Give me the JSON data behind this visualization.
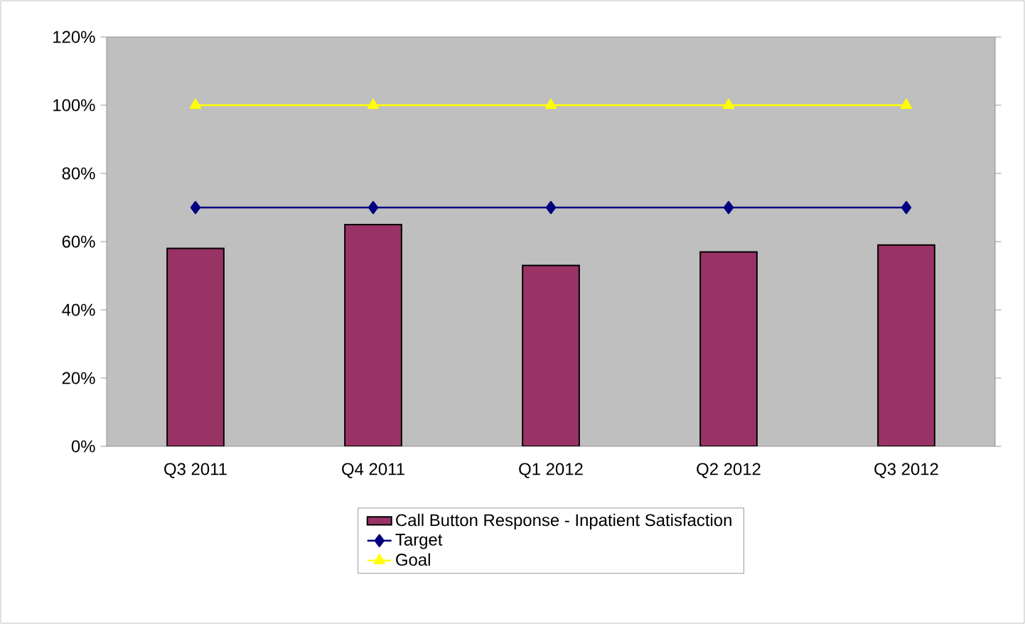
{
  "chart_data": {
    "type": "bar",
    "categories": [
      "Q3 2011",
      "Q4 2011",
      "Q1 2012",
      "Q2 2012",
      "Q3 2012"
    ],
    "series": [
      {
        "name": "Call Button Response - Inpatient Satisfaction",
        "color": "#993366",
        "values": [
          58,
          65,
          53,
          57,
          59
        ]
      },
      {
        "name": "Target",
        "type": "line",
        "color": "#000080",
        "marker": "diamond",
        "values": [
          70,
          70,
          70,
          70,
          70
        ]
      },
      {
        "name": "Goal",
        "type": "line",
        "color": "#ffff00",
        "marker": "triangle",
        "values": [
          100,
          100,
          100,
          100,
          100
        ]
      }
    ],
    "ylim": [
      0,
      120
    ],
    "yticks": [
      {
        "value": 0,
        "label": "0%"
      },
      {
        "value": 20,
        "label": "20%"
      },
      {
        "value": 40,
        "label": "40%"
      },
      {
        "value": 60,
        "label": "60%"
      },
      {
        "value": 80,
        "label": "80%"
      },
      {
        "value": 100,
        "label": "100%"
      },
      {
        "value": 120,
        "label": "120%"
      }
    ],
    "grid": false,
    "legend": "bottom"
  }
}
